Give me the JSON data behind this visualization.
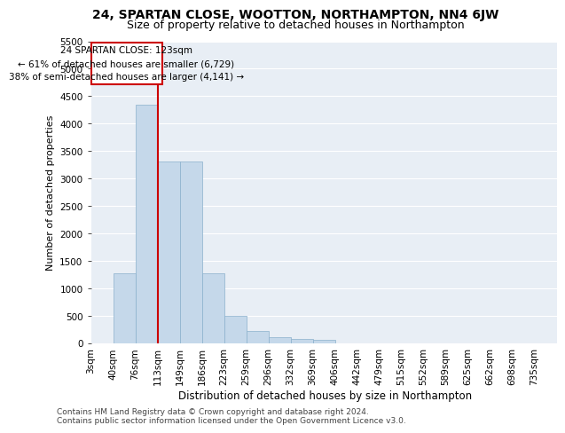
{
  "title1": "24, SPARTAN CLOSE, WOOTTON, NORTHAMPTON, NN4 6JW",
  "title2": "Size of property relative to detached houses in Northampton",
  "xlabel": "Distribution of detached houses by size in Northampton",
  "ylabel": "Number of detached properties",
  "bar_values": [
    0,
    1270,
    4350,
    3310,
    3310,
    1270,
    490,
    220,
    100,
    80,
    60,
    0,
    0,
    0,
    0,
    0,
    0,
    0,
    0,
    0,
    0
  ],
  "x_labels": [
    "3sqm",
    "40sqm",
    "76sqm",
    "113sqm",
    "149sqm",
    "186sqm",
    "223sqm",
    "259sqm",
    "296sqm",
    "332sqm",
    "369sqm",
    "406sqm",
    "442sqm",
    "479sqm",
    "515sqm",
    "552sqm",
    "589sqm",
    "625sqm",
    "662sqm",
    "698sqm",
    "735sqm"
  ],
  "bar_color": "#c5d8ea",
  "bar_edge_color": "#8ab0cc",
  "vline_color": "#cc0000",
  "annotation_text": "24 SPARTAN CLOSE: 123sqm\n← 61% of detached houses are smaller (6,729)\n38% of semi-detached houses are larger (4,141) →",
  "annotation_box_color": "#cc0000",
  "ylim_max": 5500,
  "yticks": [
    0,
    500,
    1000,
    1500,
    2000,
    2500,
    3000,
    3500,
    4000,
    4500,
    5000,
    5500
  ],
  "plot_bg_color": "#e8eef5",
  "footer1": "Contains HM Land Registry data © Crown copyright and database right 2024.",
  "footer2": "Contains public sector information licensed under the Open Government Licence v3.0.",
  "title1_fontsize": 10,
  "title2_fontsize": 9,
  "xlabel_fontsize": 8.5,
  "ylabel_fontsize": 8,
  "tick_fontsize": 7.5,
  "annotation_fontsize": 7.5,
  "footer_fontsize": 6.5,
  "vline_bar_index": 2.5
}
